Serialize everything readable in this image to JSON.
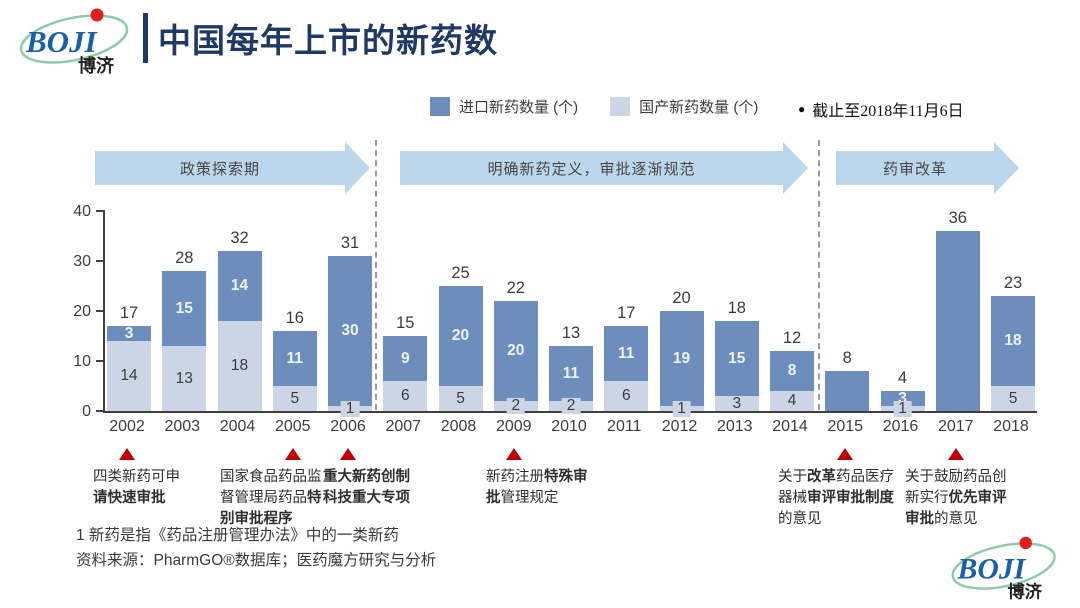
{
  "header": {
    "title": "中国每年上市的新药数",
    "logo_text": "BOJI",
    "logo_text_cn": "博济"
  },
  "legend": {
    "imported": "进口新药数量 (个)",
    "domestic": "国产新药数量 (个)",
    "bullet": "●",
    "date_note": "截止至2018年11月6日"
  },
  "phases": [
    {
      "label": "政策探索期"
    },
    {
      "label": "明确新药定义，审批逐渐规范"
    },
    {
      "label": "药审改革"
    }
  ],
  "chart_data": {
    "type": "bar",
    "stacked": true,
    "title": "中国每年上市的新药数",
    "categories": [
      "2002",
      "2003",
      "2004",
      "2005",
      "2006",
      "2007",
      "2008",
      "2009",
      "2010",
      "2011",
      "2012",
      "2013",
      "2014",
      "2015",
      "2016",
      "2017",
      "2018"
    ],
    "series": [
      {
        "name": "进口新药数量 (个)",
        "color": "#6d8ebd",
        "values": [
          3,
          15,
          14,
          11,
          30,
          9,
          20,
          20,
          11,
          11,
          19,
          15,
          8,
          8,
          3,
          36,
          18
        ]
      },
      {
        "name": "国产新药数量 (个)",
        "color": "#cbd5e6",
        "values": [
          14,
          13,
          18,
          5,
          1,
          6,
          5,
          2,
          2,
          6,
          1,
          3,
          4,
          0,
          1,
          0,
          5
        ]
      }
    ],
    "totals": [
      17,
      28,
      32,
      16,
      31,
      15,
      25,
      22,
      13,
      17,
      20,
      18,
      12,
      8,
      4,
      36,
      23
    ],
    "ylim": [
      0,
      40
    ],
    "yticks": [
      0,
      10,
      20,
      30,
      40
    ],
    "grid": false,
    "legend_position": "top",
    "hide_inner_labels_for": [
      "2015",
      "2017"
    ]
  },
  "milestones": [
    {
      "year": "2002",
      "segments": [
        {
          "t": "四类新药可申",
          "b": false
        },
        {
          "t": "请快速审批",
          "b": true
        }
      ]
    },
    {
      "year": "2005",
      "segments": [
        {
          "t": "国家食品药品监督管理局药品",
          "b": false
        },
        {
          "t": "特别审批程序",
          "b": true
        }
      ]
    },
    {
      "year": "2006",
      "segments": [
        {
          "t": "重大新药创制科技重大专项",
          "b": true
        }
      ]
    },
    {
      "year": "2009",
      "segments": [
        {
          "t": "新药注册",
          "b": false
        },
        {
          "t": "特殊审批",
          "b": true
        },
        {
          "t": "管理规定",
          "b": false
        }
      ]
    },
    {
      "year": "2015",
      "segments": [
        {
          "t": "关于",
          "b": false
        },
        {
          "t": "改革",
          "b": true
        },
        {
          "t": "药品医疗器械",
          "b": false
        },
        {
          "t": "审评审批制度",
          "b": true
        },
        {
          "t": "的意见",
          "b": false
        }
      ]
    },
    {
      "year": "2017",
      "segments": [
        {
          "t": "关于鼓励药品创新实行",
          "b": false
        },
        {
          "t": "优先审评审批",
          "b": true
        },
        {
          "t": "的意见",
          "b": false
        }
      ]
    }
  ],
  "footnotes": [
    "1 新药是指《药品注册管理办法》中的一类新药",
    "资料来源：PharmGO®数据库；医药魔方研究与分析"
  ],
  "colors": {
    "title": "#1f3864",
    "arrow": "#bcd6ec",
    "imported": "#6d8ebd",
    "domestic": "#cbd5e6",
    "milestone_marker": "#c00000",
    "axis": "#3f3f3f"
  }
}
